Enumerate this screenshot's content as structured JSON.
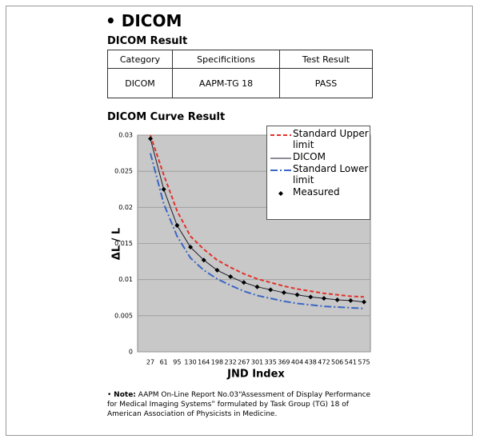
{
  "header": {
    "title": "DICOM"
  },
  "result": {
    "title": "DICOM Result",
    "table": {
      "columns": [
        "Category",
        "Specificitions",
        "Test Result"
      ],
      "rows": [
        [
          "DICOM",
          "AAPM-TG 18",
          "PASS"
        ]
      ]
    }
  },
  "curve_title": "DICOM Curve Result",
  "chart_data": {
    "type": "line",
    "x_label": "JND Index",
    "y_label": "ΔL / L",
    "categories": [
      "27",
      "61",
      "95",
      "130",
      "164",
      "198",
      "232",
      "267",
      "301",
      "335",
      "369",
      "404",
      "438",
      "472",
      "506",
      "541",
      "575"
    ],
    "ylim": [
      0,
      0.03
    ],
    "yticks": [
      0,
      0.005,
      0.01,
      0.015,
      0.02,
      0.025,
      0.03
    ],
    "grid": true,
    "legend": "upper right",
    "series": [
      {
        "name": "Standard Upper limit",
        "color": "#e3312b",
        "line_style": "dashed",
        "marker": "none",
        "values": [
          0.03,
          0.0245,
          0.0195,
          0.016,
          0.0142,
          0.0127,
          0.0117,
          0.0108,
          0.0101,
          0.0096,
          0.0091,
          0.0087,
          0.0084,
          0.0081,
          0.0079,
          0.0077,
          0.0076
        ]
      },
      {
        "name": "DICOM",
        "color": "#1a1a2e",
        "line_style": "solid",
        "marker": "none",
        "values": [
          0.0295,
          0.0225,
          0.0175,
          0.0145,
          0.0127,
          0.0113,
          0.0104,
          0.0096,
          0.009,
          0.0086,
          0.0082,
          0.0079,
          0.0076,
          0.0074,
          0.0072,
          0.0071,
          0.0069
        ]
      },
      {
        "name": "Standard Lower limit",
        "color": "#3a66c4",
        "line_style": "dashdot",
        "marker": "none",
        "values": [
          0.0275,
          0.0205,
          0.016,
          0.013,
          0.0113,
          0.0101,
          0.0092,
          0.0084,
          0.0078,
          0.0074,
          0.007,
          0.0067,
          0.0065,
          0.0063,
          0.0062,
          0.0061,
          0.006
        ]
      },
      {
        "name": "Measured",
        "color": "#000000",
        "line_style": "none",
        "marker": "diamond",
        "values": [
          0.0295,
          0.0225,
          0.0175,
          0.0145,
          0.0127,
          0.0113,
          0.0104,
          0.0096,
          0.009,
          0.0086,
          0.0082,
          0.0079,
          0.0076,
          0.0074,
          0.0072,
          0.0071,
          0.0069
        ]
      }
    ]
  },
  "note": {
    "label": "Note:",
    "text": "AAPM On-Line Report No.03“Assessment of Display Performance for Medical Imaging Systems” formulated by Task Group (TG) 18 of American Association of Physicists in Medicine."
  }
}
